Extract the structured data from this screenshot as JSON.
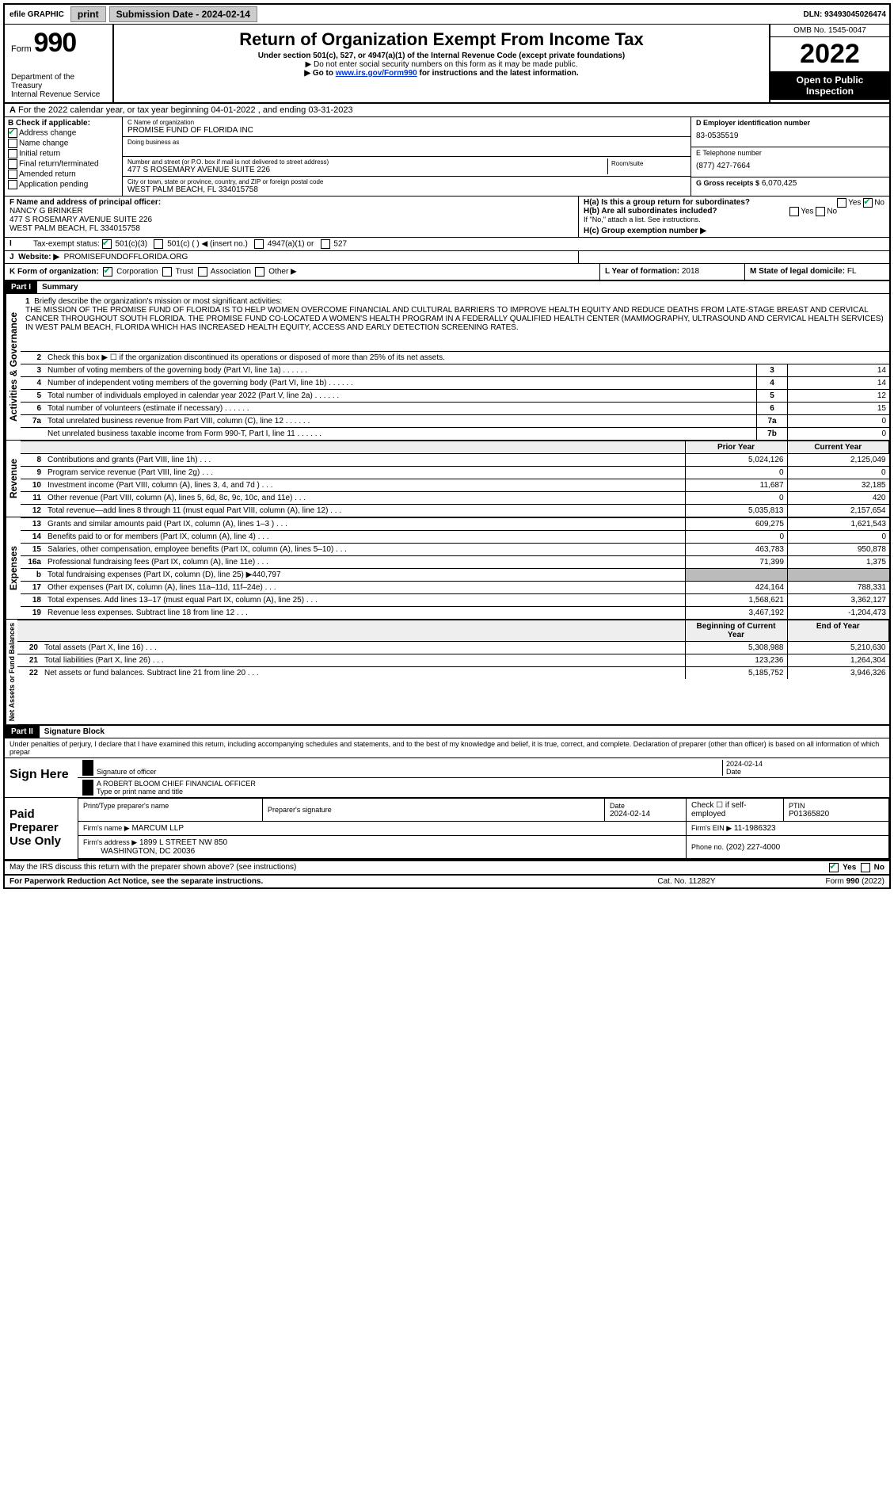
{
  "topbar": {
    "efile": "efile GRAPHIC",
    "print": "print",
    "sub_label": "Submission Date - 2024-02-14",
    "dln": "DLN: 93493045026474"
  },
  "header": {
    "form_word": "Form",
    "form_num": "990",
    "dept": "Department of the Treasury",
    "irs": "Internal Revenue Service",
    "title": "Return of Organization Exempt From Income Tax",
    "sub1": "Under section 501(c), 527, or 4947(a)(1) of the Internal Revenue Code (except private foundations)",
    "sub2": "▶ Do not enter social security numbers on this form as it may be made public.",
    "sub3_pre": "▶ Go to ",
    "sub3_link": "www.irs.gov/Form990",
    "sub3_post": " for instructions and the latest information.",
    "omb": "OMB No. 1545-0047",
    "year": "2022",
    "open": "Open to Public Inspection"
  },
  "row_a": "For the 2022 calendar year, or tax year beginning 04-01-2022   , and ending 03-31-2023",
  "box_b": {
    "title": "B Check if applicable:",
    "items": [
      "Address change",
      "Name change",
      "Initial return",
      "Final return/terminated",
      "Amended return",
      "Application pending"
    ]
  },
  "box_c": {
    "name_lbl": "C Name of organization",
    "name": "PROMISE FUND OF FLORIDA INC",
    "dba": "Doing business as",
    "street_lbl": "Number and street (or P.O. box if mail is not delivered to street address)",
    "room_lbl": "Room/suite",
    "street": "477 S ROSEMARY AVENUE SUITE 226",
    "city_lbl": "City or town, state or province, country, and ZIP or foreign postal code",
    "city": "WEST PALM BEACH, FL  334015758"
  },
  "box_d": {
    "ein_lbl": "D Employer identification number",
    "ein": "83-0535519",
    "tel_lbl": "E Telephone number",
    "tel": "(877) 427-7664",
    "gross_lbl": "G Gross receipts $",
    "gross": "6,070,425"
  },
  "box_f": {
    "lbl": "F Name and address of principal officer:",
    "name": "NANCY G BRINKER",
    "addr1": "477 S ROSEMARY AVENUE SUITE 226",
    "addr2": "WEST PALM BEACH, FL  334015758"
  },
  "box_h": {
    "ha": "H(a)  Is this a group return for subordinates?",
    "hb": "H(b)  Are all subordinates included?",
    "hb_note": "If \"No,\" attach a list. See instructions.",
    "hc": "H(c)  Group exemption number ▶"
  },
  "row_i": {
    "lbl": "Tax-exempt status:",
    "opts": [
      "501(c)(3)",
      "501(c) (  ) ◀ (insert no.)",
      "4947(a)(1) or",
      "527"
    ]
  },
  "row_j": {
    "lbl": "Website: ▶",
    "val": "PROMISEFUNDOFFLORIDA.ORG"
  },
  "row_k": {
    "lbl": "K Form of organization:",
    "opts": [
      "Corporation",
      "Trust",
      "Association",
      "Other ▶"
    ],
    "l_lbl": "L Year of formation:",
    "l_val": "2018",
    "m_lbl": "M State of legal domicile:",
    "m_val": "FL"
  },
  "part1": {
    "hdr": "Part I",
    "title": "Summary"
  },
  "mission": {
    "q1": "Briefly describe the organization's mission or most significant activities:",
    "text": "THE MISSION OF THE PROMISE FUND OF FLORIDA IS TO HELP WOMEN OVERCOME FINANCIAL AND CULTURAL BARRIERS TO IMPROVE HEALTH EQUITY AND REDUCE DEATHS FROM LATE-STAGE BREAST AND CERVICAL CANCER THROUGHOUT SOUTH FLORIDA. THE PROMISE FUND CO-LOCATED A WOMEN'S HEALTH PROGRAM IN A FEDERALLY QUALIFIED HEALTH CENTER (MAMMOGRAPHY, ULTRASOUND AND CERVICAL HEALTH SERVICES) IN WEST PALM BEACH, FLORIDA WHICH HAS INCREASED HEALTH EQUITY, ACCESS AND EARLY DETECTION SCREENING RATES.",
    "q2": "Check this box ▶ ☐ if the organization discontinued its operations or disposed of more than 25% of its net assets."
  },
  "gov_lines": [
    {
      "n": "3",
      "t": "Number of voting members of the governing body (Part VI, line 1a)",
      "box": "3",
      "v": "14"
    },
    {
      "n": "4",
      "t": "Number of independent voting members of the governing body (Part VI, line 1b)",
      "box": "4",
      "v": "14"
    },
    {
      "n": "5",
      "t": "Total number of individuals employed in calendar year 2022 (Part V, line 2a)",
      "box": "5",
      "v": "12"
    },
    {
      "n": "6",
      "t": "Total number of volunteers (estimate if necessary)",
      "box": "6",
      "v": "15"
    },
    {
      "n": "7a",
      "t": "Total unrelated business revenue from Part VIII, column (C), line 12",
      "box": "7a",
      "v": "0"
    },
    {
      "n": "",
      "t": "Net unrelated business taxable income from Form 990-T, Part I, line 11",
      "box": "7b",
      "v": "0"
    }
  ],
  "year_hdr": {
    "prior": "Prior Year",
    "current": "Current Year"
  },
  "rev_lines": [
    {
      "n": "8",
      "t": "Contributions and grants (Part VIII, line 1h)",
      "p": "5,024,126",
      "c": "2,125,049"
    },
    {
      "n": "9",
      "t": "Program service revenue (Part VIII, line 2g)",
      "p": "0",
      "c": "0"
    },
    {
      "n": "10",
      "t": "Investment income (Part VIII, column (A), lines 3, 4, and 7d )",
      "p": "11,687",
      "c": "32,185"
    },
    {
      "n": "11",
      "t": "Other revenue (Part VIII, column (A), lines 5, 6d, 8c, 9c, 10c, and 11e)",
      "p": "0",
      "c": "420"
    },
    {
      "n": "12",
      "t": "Total revenue—add lines 8 through 11 (must equal Part VIII, column (A), line 12)",
      "p": "5,035,813",
      "c": "2,157,654"
    }
  ],
  "exp_lines": [
    {
      "n": "13",
      "t": "Grants and similar amounts paid (Part IX, column (A), lines 1–3 )",
      "p": "609,275",
      "c": "1,621,543"
    },
    {
      "n": "14",
      "t": "Benefits paid to or for members (Part IX, column (A), line 4)",
      "p": "0",
      "c": "0"
    },
    {
      "n": "15",
      "t": "Salaries, other compensation, employee benefits (Part IX, column (A), lines 5–10)",
      "p": "463,783",
      "c": "950,878"
    },
    {
      "n": "16a",
      "t": "Professional fundraising fees (Part IX, column (A), line 11e)",
      "p": "71,399",
      "c": "1,375"
    },
    {
      "n": "b",
      "t": "Total fundraising expenses (Part IX, column (D), line 25) ▶440,797",
      "p": "",
      "c": "",
      "shaded": true
    },
    {
      "n": "17",
      "t": "Other expenses (Part IX, column (A), lines 11a–11d, 11f–24e)",
      "p": "424,164",
      "c": "788,331"
    },
    {
      "n": "18",
      "t": "Total expenses. Add lines 13–17 (must equal Part IX, column (A), line 25)",
      "p": "1,568,621",
      "c": "3,362,127"
    },
    {
      "n": "19",
      "t": "Revenue less expenses. Subtract line 18 from line 12",
      "p": "3,467,192",
      "c": "-1,204,473"
    }
  ],
  "na_hdr": {
    "b": "Beginning of Current Year",
    "e": "End of Year"
  },
  "na_lines": [
    {
      "n": "20",
      "t": "Total assets (Part X, line 16)",
      "p": "5,308,988",
      "c": "5,210,630"
    },
    {
      "n": "21",
      "t": "Total liabilities (Part X, line 26)",
      "p": "123,236",
      "c": "1,264,304"
    },
    {
      "n": "22",
      "t": "Net assets or fund balances. Subtract line 21 from line 20",
      "p": "5,185,752",
      "c": "3,946,326"
    }
  ],
  "side_labels": {
    "gov": "Activities & Governance",
    "rev": "Revenue",
    "exp": "Expenses",
    "na": "Net Assets or Fund Balances"
  },
  "part2": {
    "hdr": "Part II",
    "title": "Signature Block",
    "decl": "Under penalties of perjury, I declare that I have examined this return, including accompanying schedules and statements, and to the best of my knowledge and belief, it is true, correct, and complete. Declaration of preparer (other than officer) is based on all information of which prepar"
  },
  "sign": {
    "label": "Sign Here",
    "sig_of": "Signature of officer",
    "date_lbl": "Date",
    "date": "2024-02-14",
    "name": "A ROBERT BLOOM  CHIEF FINANCIAL OFFICER",
    "name_lbl": "Type or print name and title"
  },
  "prep": {
    "label": "Paid Preparer Use Only",
    "h1": "Print/Type preparer's name",
    "h2": "Preparer's signature",
    "h3": "Date",
    "h4": "Check ☐ if self-employed",
    "h5": "PTIN",
    "date": "2024-02-14",
    "ptin": "P01365820",
    "firm_lbl": "Firm's name  ▶",
    "firm": "MARCUM LLP",
    "ein_lbl": "Firm's EIN ▶",
    "ein": "11-1986323",
    "addr_lbl": "Firm's address ▶",
    "addr1": "1899 L STREET NW 850",
    "addr2": "WASHINGTON, DC  20036",
    "phone_lbl": "Phone no.",
    "phone": "(202) 227-4000"
  },
  "footer": {
    "q": "May the IRS discuss this return with the preparer shown above? (see instructions)",
    "yes": "Yes",
    "no": "No",
    "pra": "For Paperwork Reduction Act Notice, see the separate instructions.",
    "cat": "Cat. No. 11282Y",
    "form": "Form 990 (2022)"
  }
}
